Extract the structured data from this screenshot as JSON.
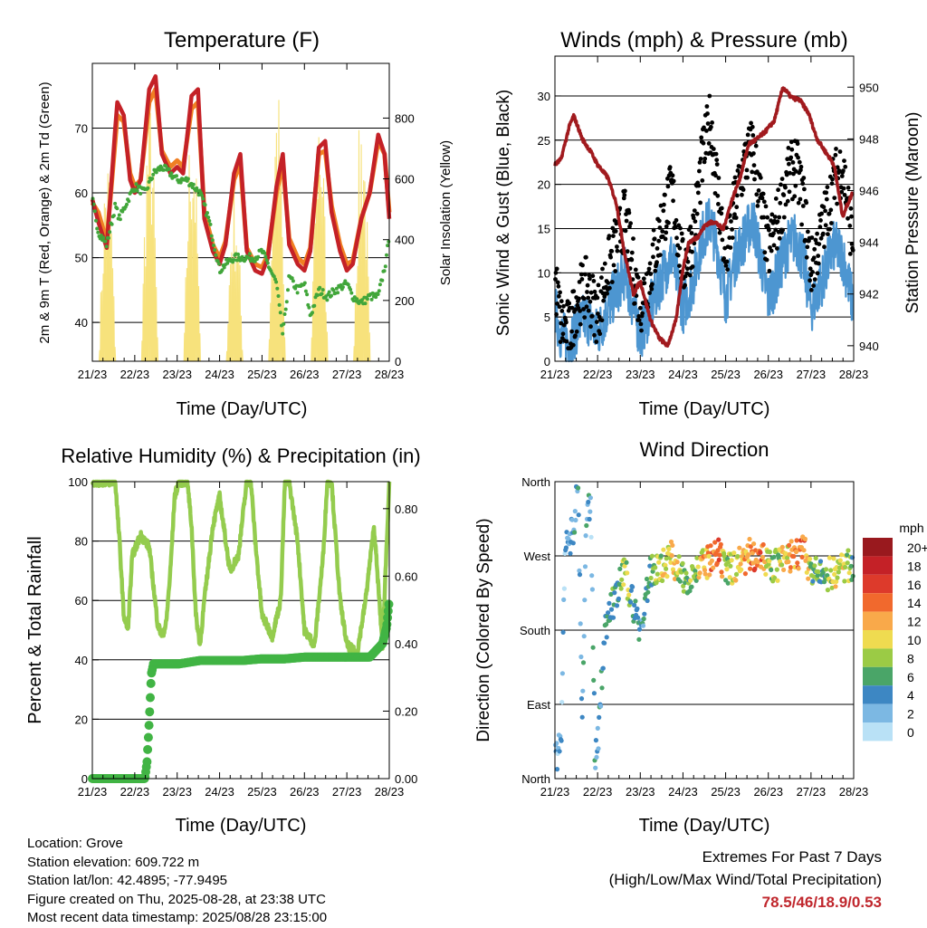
{
  "colors": {
    "temp_2m": "#c42127",
    "temp_9m": "#f07f23",
    "dewpoint": "#41a63a",
    "solar": "#f7e27c",
    "wind_sonic": "#4d96d1",
    "gust": "#000000",
    "pressure": "#a11a1e",
    "rh": "#94cc4e",
    "rain": "#41b444",
    "extremes": "#c0272d"
  },
  "x_ticks": [
    "21/23",
    "22/23",
    "23/23",
    "24/23",
    "25/23",
    "26/23",
    "27/23",
    "28/23"
  ],
  "panels": {
    "temperature": {
      "title": "Temperature (F)",
      "ylabel_left": "2m & 9m T (Red, Orange) & 2m Td (Green)",
      "ylabel_right": "Solar Insolation (Yellow)",
      "xlabel": "Time (Day/UTC)"
    },
    "winds": {
      "title": "Winds (mph) & Pressure (mb)",
      "ylabel_left": "Sonic Wind & Gust (Blue, Black)",
      "ylabel_right": "Station Pressure (Maroon)",
      "xlabel": "Time (Day/UTC)"
    },
    "humidity": {
      "title": "Relative Humidity (%) & Precipitation (in)",
      "ylabel_left": "Percent & Total Rainfall",
      "xlabel": "Time (Day/UTC)"
    },
    "direction": {
      "title": "Wind Direction",
      "ylabel_left": "Direction (Colored By Speed)",
      "xlabel": "Time (Day/UTC)",
      "colorbar_title": "mph",
      "colorbar_labels": [
        "20+",
        "18",
        "16",
        "14",
        "12",
        "10",
        "8",
        "6",
        "4",
        "2",
        "0"
      ],
      "colorbar_colors": [
        "#99191e",
        "#c42127",
        "#dd3a2b",
        "#f1692d",
        "#f9a94a",
        "#efdb50",
        "#9bcb45",
        "#4aa568",
        "#3d87c3",
        "#7cb8e3",
        "#b9e1f6"
      ]
    }
  },
  "info": {
    "location": "Location: Grove",
    "elevation": "Station elevation: 609.722 m",
    "latlon": "Station lat/lon: 42.4895; -77.9495",
    "created": "Figure created on Thu, 2025-08-28, at 23:38 UTC",
    "timestamp": "Most recent data timestamp: 2025/08/28 23:15:00"
  },
  "extremes": {
    "line1": "Extremes For Past 7 Days",
    "line2": "(High/Low/Max Wind/Total Precipitation)",
    "values": "78.5/46/18.9/0.53"
  },
  "chart_data": [
    {
      "type": "line",
      "title": "Temperature (F)",
      "xlabel": "Time (Day/UTC)",
      "ylabel": "2m & 9m T (Red, Orange) & 2m Td (Green)",
      "y2label": "Solar Insolation (Yellow)",
      "x_range_days": [
        21.96,
        28.96
      ],
      "ylim": [
        34,
        80
      ],
      "y2lim": [
        0,
        980
      ],
      "yticks": [
        40,
        50,
        60,
        70
      ],
      "y2ticks": [
        0,
        200,
        400,
        600,
        800
      ],
      "grid": "horizontal",
      "series": [
        {
          "name": "2m T",
          "axis": "left",
          "x": [
            21.96,
            22.1,
            22.3,
            22.5,
            22.55,
            22.7,
            22.85,
            22.96,
            23.1,
            23.3,
            23.45,
            23.6,
            23.8,
            23.96,
            24.1,
            24.3,
            24.45,
            24.6,
            24.8,
            24.96,
            25.1,
            25.3,
            25.45,
            25.6,
            25.8,
            25.96,
            26.1,
            26.3,
            26.45,
            26.6,
            26.8,
            26.96,
            27.1,
            27.3,
            27.45,
            27.6,
            27.8,
            27.96,
            28.1,
            28.3,
            28.5,
            28.7,
            28.85,
            28.96
          ],
          "y": [
            59,
            55.5,
            51.5,
            70,
            74,
            72,
            62,
            60,
            62,
            76,
            78,
            66,
            63,
            64,
            63,
            75,
            76,
            56,
            51,
            49,
            52,
            63,
            66,
            51,
            48,
            47.5,
            50,
            61,
            66,
            52,
            49,
            48,
            51,
            67,
            68,
            57,
            51,
            48,
            49,
            56,
            60,
            69,
            66,
            56
          ]
        },
        {
          "name": "9m T",
          "axis": "left",
          "x": [
            21.96,
            22.1,
            22.3,
            22.5,
            22.55,
            22.7,
            22.85,
            22.96,
            23.1,
            23.3,
            23.45,
            23.6,
            23.8,
            23.96,
            24.1,
            24.3,
            24.45,
            24.6,
            24.8,
            24.96,
            25.1,
            25.3,
            25.45,
            25.6,
            25.8,
            25.96,
            26.1,
            26.3,
            26.45,
            26.6,
            26.8,
            26.96,
            27.1,
            27.3,
            27.45,
            27.6,
            27.8,
            27.96,
            28.1,
            28.3,
            28.5,
            28.7,
            28.85,
            28.96
          ],
          "y": [
            58.5,
            57,
            52.5,
            68,
            72,
            71,
            63,
            61,
            62,
            74,
            76,
            66.5,
            64,
            65,
            64,
            73,
            74,
            57,
            52,
            50,
            52.5,
            62,
            64.5,
            51.5,
            49,
            48.5,
            50.5,
            60,
            64.5,
            53,
            50,
            49,
            51.5,
            66,
            66.5,
            58,
            52,
            49,
            49.5,
            56,
            60,
            68,
            66,
            57
          ]
        },
        {
          "name": "2m Td",
          "axis": "left",
          "x": [
            21.96,
            22.1,
            22.3,
            22.5,
            22.6,
            22.8,
            22.96,
            23.2,
            23.4,
            23.6,
            23.8,
            23.96,
            24.2,
            24.5,
            24.7,
            24.9,
            24.96,
            25.1,
            25.3,
            25.6,
            25.8,
            25.96,
            26.1,
            26.3,
            26.45,
            26.6,
            26.8,
            26.96,
            27.1,
            27.3,
            27.5,
            27.7,
            27.96,
            28.1,
            28.3,
            28.5,
            28.7,
            28.9,
            28.96
          ],
          "y": [
            59,
            54,
            52,
            58,
            56,
            59,
            61,
            60,
            63,
            64,
            63,
            62,
            62,
            60,
            56,
            50,
            48,
            49,
            50,
            50,
            50,
            51,
            49,
            46,
            38,
            47,
            45,
            46,
            41,
            45,
            44,
            45,
            46,
            44,
            43,
            44,
            44,
            50,
            54
          ]
        },
        {
          "name": "Solar Insolation",
          "axis": "right",
          "x": [
            22.1,
            22.25,
            22.4,
            22.55,
            22.7,
            22.85,
            23.1,
            23.25,
            23.4,
            23.55,
            23.7,
            23.85,
            24.1,
            24.25,
            24.4,
            24.55,
            24.7,
            24.85,
            25.1,
            25.25,
            25.4,
            25.55,
            25.7,
            25.85,
            26.1,
            26.25,
            26.4,
            26.55,
            26.7,
            26.85,
            27.1,
            27.25,
            27.4,
            27.55,
            27.7,
            27.85,
            28.1,
            28.25,
            28.4,
            28.55,
            28.7,
            28.85
          ],
          "y": [
            0,
            300,
            700,
            650,
            300,
            0,
            0,
            400,
            900,
            600,
            300,
            0,
            0,
            500,
            850,
            700,
            400,
            0,
            0,
            300,
            600,
            500,
            250,
            0,
            0,
            450,
            950,
            600,
            300,
            0,
            0,
            500,
            950,
            650,
            300,
            0,
            0,
            350,
            650,
            880,
            500,
            0
          ]
        }
      ]
    },
    {
      "type": "scatter",
      "title": "Winds (mph) & Pressure (mb)",
      "xlabel": "Time (Day/UTC)",
      "ylabel": "Sonic Wind & Gust (Blue, Black)",
      "y2label": "Station Pressure (Maroon)",
      "x_range_days": [
        21.96,
        28.96
      ],
      "ylim": [
        0,
        34.5
      ],
      "y2lim": [
        939.4,
        951.2
      ],
      "yticks": [
        0,
        5,
        10,
        15,
        20,
        25,
        30
      ],
      "y2ticks": [
        940,
        942,
        944,
        946,
        948,
        950
      ],
      "grid": "horizontal",
      "series": [
        {
          "name": "Sonic Wind",
          "axis": "left",
          "x": [
            21.96,
            22.1,
            22.3,
            22.5,
            22.7,
            22.96,
            23.2,
            23.4,
            23.6,
            23.8,
            23.96,
            24.2,
            24.5,
            24.7,
            24.96,
            25.2,
            25.4,
            25.6,
            25.8,
            25.96,
            26.2,
            26.4,
            26.6,
            26.8,
            26.96,
            27.2,
            27.4,
            27.6,
            27.8,
            27.96,
            28.2,
            28.5,
            28.7,
            28.96
          ],
          "y": [
            6,
            3,
            2,
            4,
            5,
            3,
            6,
            8,
            10,
            6,
            3,
            6,
            10,
            12,
            6,
            9,
            14,
            16,
            12,
            7,
            12,
            14,
            16,
            11,
            7,
            10,
            13,
            14,
            11,
            6,
            9,
            13,
            12,
            6
          ]
        },
        {
          "name": "Gust",
          "axis": "left",
          "x": [
            21.96,
            22.1,
            22.3,
            22.5,
            22.7,
            22.96,
            23.2,
            23.4,
            23.6,
            23.8,
            23.96,
            24.2,
            24.5,
            24.7,
            24.96,
            25.2,
            25.4,
            25.6,
            25.8,
            25.96,
            26.2,
            26.4,
            26.6,
            26.8,
            26.96,
            27.2,
            27.4,
            27.6,
            27.8,
            27.96,
            28.2,
            28.5,
            28.7,
            28.96
          ],
          "y": [
            9,
            4,
            3,
            7,
            8,
            5,
            10,
            13,
            16,
            10,
            6,
            10,
            16,
            19,
            10,
            14,
            22,
            27,
            18,
            11,
            18,
            22,
            24,
            17,
            12,
            16,
            20,
            22,
            17,
            10,
            14,
            20,
            22,
            12
          ]
        },
        {
          "name": "Station Pressure",
          "axis": "right",
          "x": [
            21.96,
            22.1,
            22.3,
            22.4,
            22.6,
            22.8,
            22.96,
            23.2,
            23.4,
            23.6,
            23.8,
            23.96,
            24.2,
            24.4,
            24.6,
            24.8,
            24.96,
            25.1,
            25.3,
            25.5,
            25.7,
            25.9,
            26.1,
            26.3,
            26.5,
            26.7,
            26.9,
            27.1,
            27.3,
            27.5,
            27.7,
            27.9,
            28.1,
            28.3,
            28.5,
            28.7,
            28.85,
            28.96
          ],
          "y": [
            947,
            947.2,
            948.5,
            948.9,
            948,
            947.5,
            947,
            946.5,
            945.5,
            943.5,
            942,
            942.5,
            941,
            940.3,
            940,
            941,
            943,
            944,
            944.2,
            944.7,
            944.8,
            944.5,
            945.6,
            946.5,
            947.8,
            948,
            948.3,
            948.7,
            950,
            949.6,
            949.5,
            949,
            948,
            947.5,
            947,
            945,
            945.6,
            946
          ]
        }
      ]
    },
    {
      "type": "line",
      "title": "Relative Humidity (%) & Precipitation (in)",
      "xlabel": "Time (Day/UTC)",
      "ylabel": "Percent & Total Rainfall",
      "x_range_days": [
        21.96,
        28.96
      ],
      "ylim": [
        0,
        100
      ],
      "y2lim": [
        0,
        0.88
      ],
      "yticks": [
        0,
        20,
        40,
        60,
        80,
        100
      ],
      "y2ticks": [
        0.0,
        0.2,
        0.4,
        0.6,
        0.8
      ],
      "grid": "horizontal",
      "series": [
        {
          "name": "Relative Humidity",
          "axis": "left",
          "x": [
            21.96,
            22.2,
            22.5,
            22.6,
            22.7,
            22.8,
            22.9,
            23.1,
            23.2,
            23.3,
            23.5,
            23.6,
            23.7,
            23.8,
            23.9,
            24.0,
            24.2,
            24.3,
            24.4,
            24.5,
            24.6,
            24.8,
            24.96,
            25.2,
            25.4,
            25.6,
            25.7,
            25.8,
            25.96,
            26.2,
            26.4,
            26.5,
            26.6,
            26.8,
            26.96,
            27.2,
            27.4,
            27.5,
            27.6,
            27.8,
            27.96,
            28.2,
            28.4,
            28.6,
            28.8,
            28.96
          ],
          "y": [
            100,
            100,
            100,
            80,
            55,
            50,
            75,
            82,
            80,
            78,
            52,
            48,
            52,
            70,
            95,
            100,
            100,
            85,
            55,
            45,
            60,
            85,
            95,
            70,
            75,
            100,
            100,
            80,
            55,
            48,
            60,
            100,
            100,
            80,
            50,
            45,
            75,
            100,
            100,
            60,
            45,
            42,
            60,
            85,
            45,
            100
          ]
        },
        {
          "name": "Total Rainfall",
          "axis": "right",
          "x": [
            21.96,
            22.5,
            22.96,
            23.1,
            23.2,
            23.25,
            23.3,
            23.35,
            23.4,
            23.5,
            24.0,
            24.5,
            24.96,
            25.5,
            25.96,
            26.5,
            26.96,
            27.5,
            27.96,
            28.5,
            28.8,
            28.9,
            28.96
          ],
          "y": [
            0,
            0,
            0,
            0,
            0,
            0.05,
            0.17,
            0.31,
            0.34,
            0.34,
            0.34,
            0.35,
            0.35,
            0.35,
            0.355,
            0.355,
            0.36,
            0.36,
            0.36,
            0.36,
            0.4,
            0.45,
            0.53
          ]
        }
      ]
    },
    {
      "type": "scatter",
      "title": "Wind Direction",
      "xlabel": "Time (Day/UTC)",
      "ylabel": "Direction (Colored By Speed)",
      "x_range_days": [
        21.96,
        28.96
      ],
      "y_categories": [
        "North",
        "East",
        "South",
        "West",
        "North"
      ],
      "colorbar": {
        "title": "mph",
        "range": [
          0,
          20
        ]
      },
      "series": [
        {
          "name": "Direction (degrees)",
          "x": [
            21.96,
            22.1,
            22.2,
            22.3,
            22.4,
            22.5,
            22.6,
            22.7,
            22.8,
            22.9,
            22.96,
            23.1,
            23.2,
            23.4,
            23.5,
            23.6,
            23.8,
            23.96,
            24.2,
            24.5,
            24.7,
            24.96,
            25.2,
            25.5,
            25.8,
            25.96,
            26.2,
            26.5,
            26.8,
            26.96,
            27.2,
            27.5,
            27.8,
            27.96,
            28.2,
            28.5,
            28.7,
            28.96
          ],
          "y": [
            20,
            40,
            280,
            290,
            300,
            360,
            60,
            320,
            340,
            20,
            40,
            160,
            200,
            220,
            240,
            250,
            210,
            180,
            250,
            260,
            270,
            240,
            250,
            260,
            270,
            250,
            260,
            270,
            275,
            255,
            260,
            270,
            275,
            250,
            245,
            250,
            255,
            260
          ],
          "speed": [
            2,
            2,
            3,
            2,
            3,
            4,
            3,
            4,
            3,
            4,
            3,
            4,
            5,
            6,
            7,
            8,
            6,
            4,
            6,
            9,
            11,
            6,
            8,
            12,
            14,
            8,
            10,
            13,
            15,
            8,
            9,
            12,
            14,
            7,
            6,
            9,
            10,
            6
          ]
        }
      ]
    }
  ]
}
